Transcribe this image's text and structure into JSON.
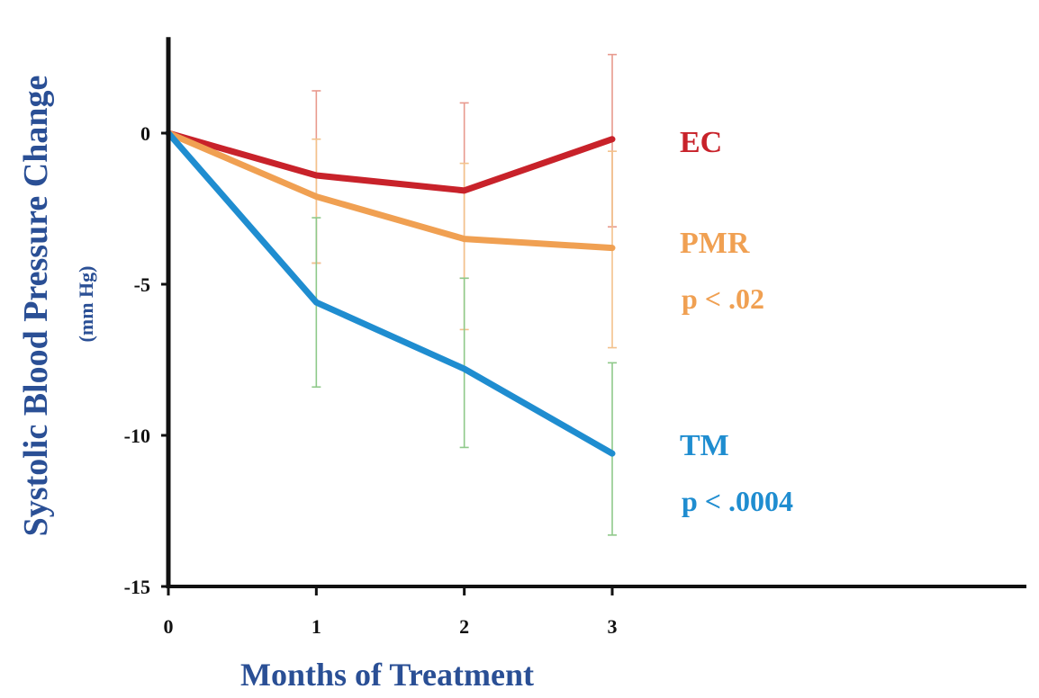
{
  "chart_data": {
    "type": "line",
    "xlabel": "Months of Treatment",
    "ylabel": "Systolic Blood Pressure Change",
    "ylabel_unit": "(mm Hg)",
    "x": [
      0,
      1,
      2,
      3
    ],
    "xlim": [
      0,
      3
    ],
    "ylim": [
      -15,
      3
    ],
    "x_ticks": [
      "0",
      "1",
      "2",
      "3"
    ],
    "y_ticks": [
      {
        "value": 0,
        "label": "0"
      },
      {
        "value": -5,
        "label": "-5"
      },
      {
        "value": -10,
        "label": "-10"
      },
      {
        "value": -15,
        "label": "-15"
      }
    ],
    "grid": false,
    "series": [
      {
        "name": "EC",
        "annotation": "",
        "color": "#c8222a",
        "error_color": "#e89a8e",
        "values": [
          0,
          -1.4,
          -1.9,
          -0.2
        ],
        "error_low": [
          null,
          -4.3,
          -4.8,
          -3.1
        ],
        "error_high": [
          null,
          1.4,
          1.0,
          2.6
        ]
      },
      {
        "name": "PMR",
        "annotation": "p < .02",
        "color": "#f0a052",
        "error_color": "#f3c28c",
        "values": [
          0,
          -2.1,
          -3.5,
          -3.8
        ],
        "error_low": [
          null,
          -4.3,
          -6.5,
          -7.1
        ],
        "error_high": [
          null,
          -0.2,
          -1.0,
          -0.6
        ]
      },
      {
        "name": "TM",
        "annotation": "p < .0004",
        "color": "#1f8dd0",
        "error_color": "#8fc98a",
        "values": [
          0,
          -5.6,
          -7.8,
          -10.6
        ],
        "error_low": [
          null,
          -8.4,
          -10.4,
          -13.3
        ],
        "error_high": [
          null,
          -2.8,
          -4.8,
          -7.6
        ]
      }
    ]
  }
}
